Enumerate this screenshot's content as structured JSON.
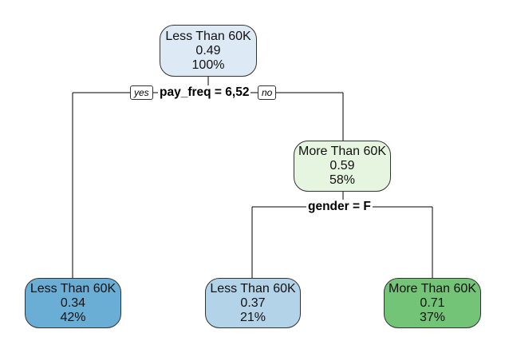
{
  "nodes": {
    "root": {
      "class": "Less Than 60K",
      "prob": "0.49",
      "pct": "100%",
      "fill": "#dde9f5"
    },
    "right": {
      "class": "More Than 60K",
      "prob": "0.59",
      "pct": "58%",
      "fill": "#e6f5df"
    },
    "leaf1": {
      "class": "Less Than 60K",
      "prob": "0.34",
      "pct": "42%",
      "fill": "#6aaed6"
    },
    "leaf2": {
      "class": "Less Than 60K",
      "prob": "0.37",
      "pct": "21%",
      "fill": "#b3d3e8"
    },
    "leaf3": {
      "class": "More Than 60K",
      "prob": "0.71",
      "pct": "37%",
      "fill": "#73c476"
    }
  },
  "splits": {
    "root": {
      "label": "pay_freq = 6,52",
      "yes": "yes",
      "no": "no"
    },
    "right": {
      "label": "gender = F"
    }
  },
  "colors": {
    "edge": "#000000",
    "border": "#333333"
  }
}
